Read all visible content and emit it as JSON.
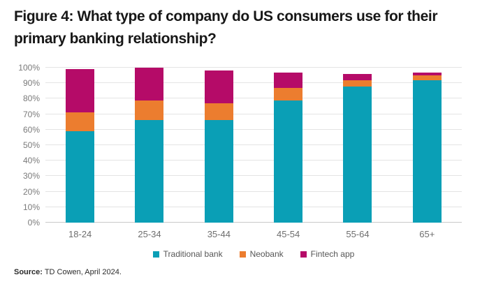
{
  "figure": {
    "title_line1": "Figure 4: What type of company do US consumers use for their",
    "title_line2": "primary banking relationship?",
    "source_label": "Source:",
    "source_text": "TD Cowen, April 2024."
  },
  "colors": {
    "traditional_bank": "#0A9FB6",
    "neobank": "#EC7D2F",
    "fintech_app": "#B50B68",
    "gridline": "#e4e4e4",
    "axis_line": "#c9c9c9",
    "axis_text": "#7a7a7a",
    "title_text": "#171717"
  },
  "chart_data": {
    "type": "bar",
    "stacked": true,
    "title": "Figure 4: What type of company do US consumers use for their primary banking relationship?",
    "categories": [
      "18-24",
      "25-34",
      "35-44",
      "45-54",
      "55-64",
      "65+"
    ],
    "series": [
      {
        "name": "Traditional bank",
        "color": "#0A9FB6",
        "values": [
          59,
          66,
          66,
          79,
          88,
          92
        ]
      },
      {
        "name": "Neobank",
        "color": "#EC7D2F",
        "values": [
          12,
          13,
          11,
          8,
          4,
          3
        ]
      },
      {
        "name": "Fintech app",
        "color": "#B50B68",
        "values": [
          28,
          21,
          21,
          10,
          4,
          2
        ]
      }
    ],
    "xlabel": "",
    "ylabel": "",
    "ylim": [
      0,
      100
    ],
    "ytick_step": 10,
    "ytick_suffix": "%",
    "grid": true,
    "legend_position": "bottom"
  }
}
